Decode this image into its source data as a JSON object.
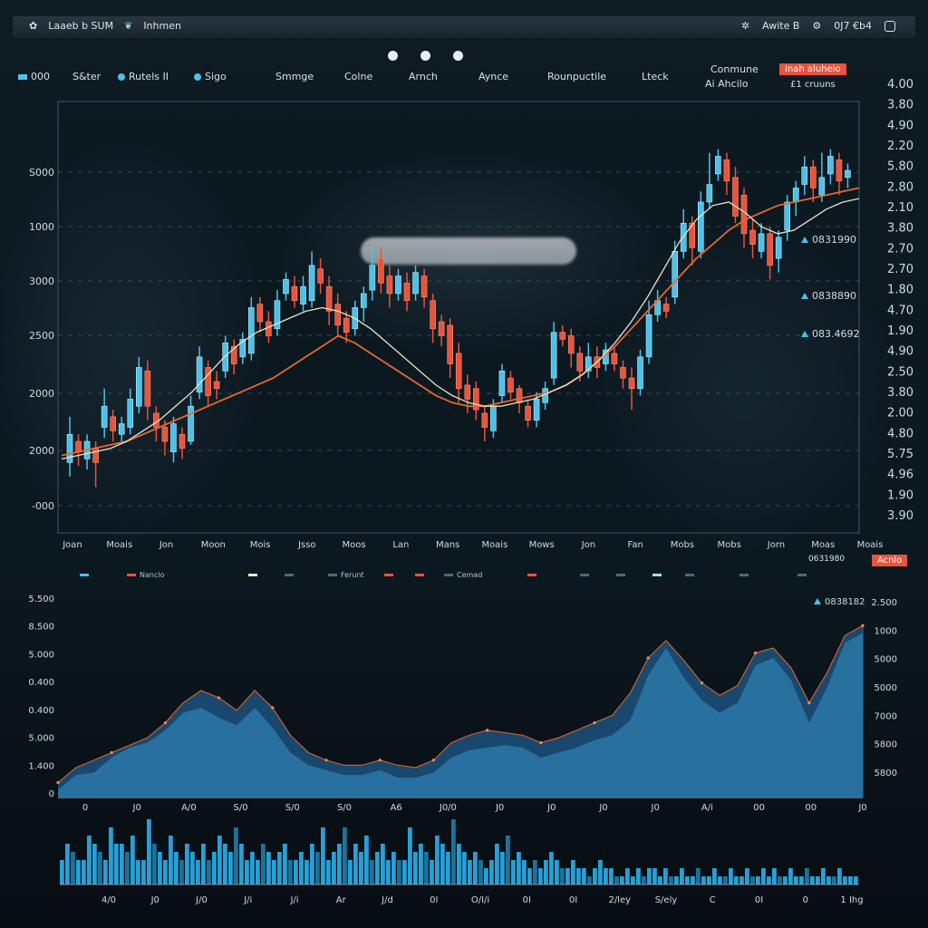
{
  "window": {
    "title_left": "Laaeb b SUM",
    "title_brand": "Inhmen",
    "status_text": "Awite B",
    "time_text": "0J7 €b4"
  },
  "menu": [
    {
      "label": "000"
    },
    {
      "label": "S&ter"
    },
    {
      "label": "Rutels II"
    },
    {
      "label": "Sigo"
    },
    {
      "label": "Smmge"
    },
    {
      "label": "Colne"
    },
    {
      "label": "Arnch"
    },
    {
      "label": "Aynce"
    },
    {
      "label": "Rounpuctile"
    },
    {
      "label": "Lteck"
    }
  ],
  "top_right": {
    "label1": "Conmune",
    "label2": "Ai Ahcilo",
    "badge": "Inah aluheio",
    "sub": "£1 cruuns"
  },
  "colors": {
    "up": "#4ac2ea",
    "down": "#e8543c",
    "ma_fast": "#e9e7c5",
    "ma_slow": "#e8672f",
    "area_top": "#2a78a8",
    "area_back": "#1b4f78",
    "volume": "#2aa8e0",
    "grid": "#3a5666"
  },
  "chart_data": [
    {
      "type": "candlestick",
      "title": "",
      "y_tick_labels": [
        "S000",
        "1000",
        "3000",
        "2500",
        "2000",
        "2000",
        "-000"
      ],
      "x_tick_labels": [
        "Joan",
        "Moais",
        "Jon",
        "Moon",
        "Mois",
        "Jsso",
        "Moos",
        "Lan",
        "Mans",
        "Moais",
        "Mows",
        "Jon",
        "Fan",
        "Mobs",
        "Mobs",
        "Jorn",
        "Moas",
        "Moais"
      ],
      "right_axis_labels": [
        "4.00",
        "3.80",
        "4.90",
        "2.20",
        "5.80",
        "2.80",
        "2.10",
        "3.80",
        "2.70",
        "2.70",
        "1.80",
        "4.70",
        "1.90",
        "4.90",
        "2.50",
        "3.80",
        "2.00",
        "4.80",
        "5.75",
        "4.96",
        "1.90",
        "3.90"
      ],
      "annotations": [
        {
          "text": "0831990",
          "color": "#4ac2ea"
        },
        {
          "text": "0838890",
          "color": "#4ac2ea"
        },
        {
          "text": "083.4692",
          "color": "#4ac2ea"
        }
      ],
      "ylim": [
        0,
        6000
      ],
      "candles": [
        [
          1000,
          1400,
          800,
          1650
        ],
        [
          1300,
          1150,
          950,
          1400
        ],
        [
          1050,
          1300,
          900,
          1400
        ],
        [
          1200,
          1000,
          650,
          1300
        ],
        [
          1500,
          1800,
          1350,
          2050
        ],
        [
          1650,
          1450,
          1300,
          1750
        ],
        [
          1400,
          1550,
          1300,
          1650
        ],
        [
          1500,
          1900,
          1400,
          2050
        ],
        [
          1800,
          2350,
          1700,
          2500
        ],
        [
          2300,
          1800,
          1600,
          2450
        ],
        [
          1700,
          1500,
          1300,
          1800
        ],
        [
          1500,
          1300,
          1100,
          1600
        ],
        [
          1150,
          1550,
          1000,
          1650
        ],
        [
          1400,
          1200,
          1050,
          1500
        ],
        [
          1300,
          1800,
          1250,
          1950
        ],
        [
          2000,
          2500,
          1900,
          2650
        ],
        [
          2350,
          1950,
          1800,
          2450
        ],
        [
          2150,
          2050,
          1900,
          2300
        ],
        [
          2300,
          2700,
          2200,
          2800
        ],
        [
          2650,
          2400,
          2250,
          2750
        ],
        [
          2500,
          2750,
          2400,
          2850
        ],
        [
          2550,
          3200,
          2450,
          3350
        ],
        [
          3250,
          3000,
          2850,
          3350
        ],
        [
          3000,
          2800,
          2700,
          3150
        ],
        [
          2900,
          3300,
          2800,
          3450
        ],
        [
          3400,
          3600,
          3300,
          3700
        ],
        [
          3500,
          3300,
          3200,
          3650
        ],
        [
          3250,
          3500,
          3150,
          3650
        ],
        [
          3300,
          3800,
          3200,
          4000
        ],
        [
          3750,
          3550,
          3400,
          3900
        ],
        [
          3500,
          3150,
          2950,
          3650
        ],
        [
          3250,
          2950,
          2800,
          3400
        ],
        [
          3050,
          2850,
          2700,
          3150
        ],
        [
          2900,
          3200,
          2800,
          3300
        ],
        [
          3200,
          3400,
          3000,
          3500
        ],
        [
          3450,
          3800,
          3300,
          4100
        ],
        [
          3900,
          3550,
          3400,
          4050
        ],
        [
          3650,
          3400,
          3200,
          3800
        ],
        [
          3400,
          3650,
          3300,
          3750
        ],
        [
          3550,
          3300,
          3150,
          3700
        ],
        [
          3400,
          3700,
          3300,
          3800
        ],
        [
          3650,
          3350,
          3200,
          3750
        ],
        [
          3300,
          2900,
          2700,
          3400
        ],
        [
          3000,
          2800,
          2650,
          3100
        ],
        [
          2950,
          2400,
          2200,
          3050
        ],
        [
          2550,
          2050,
          1850,
          2700
        ],
        [
          2100,
          1900,
          1700,
          2250
        ],
        [
          2050,
          1750,
          1600,
          2150
        ],
        [
          1700,
          1500,
          1300,
          1800
        ],
        [
          1450,
          1800,
          1350,
          1900
        ],
        [
          1950,
          2300,
          1850,
          2400
        ],
        [
          2200,
          2000,
          1900,
          2300
        ],
        [
          2050,
          1850,
          1700,
          2100
        ],
        [
          1800,
          1600,
          1500,
          1900
        ],
        [
          1600,
          1900,
          1500,
          2000
        ],
        [
          1850,
          2050,
          1750,
          2150
        ],
        [
          2200,
          2850,
          2100,
          3000
        ],
        [
          2850,
          2750,
          2650,
          2950
        ],
        [
          2800,
          2550,
          2350,
          2900
        ],
        [
          2550,
          2300,
          2150,
          2650
        ],
        [
          2300,
          2500,
          2200,
          2700
        ],
        [
          2500,
          2350,
          2200,
          2650
        ],
        [
          2400,
          2600,
          2300,
          2700
        ],
        [
          2550,
          2400,
          2300,
          2650
        ],
        [
          2350,
          2200,
          2050,
          2450
        ],
        [
          2200,
          2050,
          1750,
          2350
        ],
        [
          2050,
          2500,
          1950,
          2600
        ],
        [
          2500,
          3100,
          2400,
          3300
        ],
        [
          3100,
          3300,
          3000,
          3450
        ],
        [
          3250,
          3150,
          3050,
          3350
        ],
        [
          3350,
          4000,
          3250,
          4150
        ],
        [
          4000,
          4400,
          3900,
          4600
        ],
        [
          4400,
          4050,
          3800,
          4500
        ],
        [
          4000,
          4700,
          3900,
          4850
        ],
        [
          4700,
          4950,
          4600,
          5400
        ],
        [
          5100,
          5350,
          5000,
          5450
        ],
        [
          5300,
          5000,
          4800,
          5400
        ],
        [
          5050,
          4500,
          4400,
          5200
        ],
        [
          4800,
          4250,
          4050,
          4900
        ],
        [
          4300,
          4100,
          3900,
          4450
        ],
        [
          4000,
          4250,
          3900,
          4400
        ],
        [
          4250,
          3800,
          3600,
          4350
        ],
        [
          3900,
          4200,
          3700,
          4300
        ],
        [
          4300,
          4700,
          4150,
          4800
        ],
        [
          4700,
          4900,
          4500,
          5000
        ],
        [
          4950,
          5200,
          4800,
          5350
        ],
        [
          5200,
          4900,
          4700,
          5300
        ],
        [
          4800,
          5050,
          4700,
          5400
        ],
        [
          5100,
          5350,
          4950,
          5450
        ],
        [
          5300,
          5000,
          4800,
          5400
        ],
        [
          5050,
          5150,
          4900,
          5250
        ]
      ],
      "ma_fast_values": [
        1050,
        1100,
        1150,
        1200,
        1300,
        1450,
        1600,
        1800,
        2000,
        2250,
        2500,
        2700,
        2850,
        2950,
        3050,
        3150,
        3200,
        3150,
        3050,
        2900,
        2700,
        2500,
        2300,
        2100,
        1950,
        1850,
        1800,
        1800,
        1850,
        1900,
        2000,
        2100,
        2250,
        2450,
        2700,
        3000,
        3350,
        3750,
        4150,
        4450,
        4650,
        4700,
        4550,
        4350,
        4250,
        4300,
        4450,
        4600,
        4700,
        4750
      ],
      "ma_slow_values": [
        1100,
        1150,
        1200,
        1250,
        1300,
        1400,
        1500,
        1600,
        1700,
        1800,
        1900,
        2000,
        2100,
        2200,
        2350,
        2500,
        2650,
        2800,
        2700,
        2550,
        2400,
        2250,
        2100,
        1950,
        1850,
        1800,
        1800,
        1850,
        1900,
        1950,
        2000,
        2100,
        2250,
        2450,
        2650,
        2900,
        3150,
        3400,
        3650,
        3900,
        4100,
        4300,
        4450,
        4550,
        4650,
        4700,
        4750,
        4800,
        4850,
        4900
      ]
    },
    {
      "type": "area",
      "left_axis_labels": [
        "5.500",
        "8.500",
        "5.000",
        "0.400",
        "0.400",
        "5.000",
        "1.400",
        "0"
      ],
      "right_axis_labels": [
        "2.500",
        "1000",
        "5000",
        "5000",
        "7000",
        "5800",
        "5800"
      ],
      "x_tick_labels": [
        "0",
        "J0",
        "A/0",
        "S/0",
        "S/0",
        "S/0",
        "A6",
        "J0/0",
        "J0",
        "J0",
        "J0",
        "J0",
        "A/i",
        "00",
        "00",
        "J0"
      ],
      "annotation": "0838182",
      "ylim": [
        0,
        8
      ],
      "front_values": [
        0.3,
        0.9,
        1.0,
        1.6,
        2.0,
        2.2,
        2.7,
        3.4,
        3.6,
        3.2,
        2.9,
        3.6,
        2.8,
        1.8,
        1.3,
        1.1,
        0.9,
        0.9,
        1.1,
        0.8,
        0.8,
        1.0,
        1.6,
        1.9,
        2.0,
        2.1,
        2.0,
        1.6,
        1.8,
        2.0,
        2.3,
        2.5,
        3.1,
        4.9,
        6.0,
        4.8,
        3.9,
        3.4,
        3.8,
        5.3,
        5.6,
        4.7,
        3.0,
        4.4,
        6.2,
        6.6
      ],
      "back_values": [
        0.6,
        1.2,
        1.5,
        1.8,
        2.1,
        2.4,
        3.0,
        3.8,
        4.3,
        4.0,
        3.5,
        4.3,
        3.6,
        2.5,
        1.8,
        1.5,
        1.3,
        1.3,
        1.5,
        1.3,
        1.2,
        1.5,
        2.2,
        2.5,
        2.7,
        2.6,
        2.5,
        2.2,
        2.4,
        2.7,
        3.0,
        3.3,
        4.2,
        5.6,
        6.3,
        5.5,
        4.6,
        4.1,
        4.5,
        5.8,
        6.0,
        5.2,
        3.8,
        5.0,
        6.5,
        6.9
      ]
    },
    {
      "type": "bar",
      "x_tick_labels": [
        "4/0",
        "J0",
        "J/0",
        "J/i",
        "J/i",
        "Ar",
        "J/d",
        "0I",
        "O/I/i",
        "0I",
        "0I",
        "2/ley",
        "S/ely",
        "C",
        "0I",
        "0",
        "1 Ihg"
      ],
      "values": [
        3,
        5,
        4,
        3,
        3,
        6,
        5,
        4,
        3,
        7,
        5,
        5,
        4,
        6,
        3,
        3,
        8,
        5,
        4,
        3,
        6,
        4,
        3,
        5,
        4,
        3,
        5,
        3,
        4,
        6,
        5,
        4,
        7,
        5,
        3,
        4,
        3,
        5,
        4,
        3,
        4,
        5,
        3,
        3,
        4,
        3,
        5,
        4,
        7,
        3,
        4,
        5,
        7,
        3,
        5,
        4,
        6,
        3,
        4,
        5,
        3,
        4,
        3,
        3,
        7,
        4,
        5,
        4,
        3,
        6,
        5,
        4,
        8,
        5,
        4,
        3,
        4,
        3,
        2,
        3,
        5,
        4,
        6,
        3,
        4,
        3,
        2,
        3,
        2,
        3,
        4,
        3,
        2,
        2,
        3,
        2,
        2,
        1,
        2,
        3,
        2,
        2,
        1,
        1,
        2,
        1,
        2,
        1,
        2,
        2,
        1,
        2,
        1,
        1,
        2,
        1,
        1,
        2,
        1,
        1,
        2,
        1,
        1,
        2,
        1,
        1,
        2,
        1,
        1,
        2,
        1,
        2,
        1,
        1,
        2,
        1,
        1,
        2,
        1,
        1,
        2,
        1,
        1,
        2,
        1,
        1,
        1
      ]
    }
  ],
  "legend": {
    "items": [
      {
        "label": "",
        "color": "#4ac2ea"
      },
      {
        "label": "Nanclo",
        "color": "#e8543c"
      },
      {
        "label": "",
        "color": "#e9e7c5"
      },
      {
        "label": "",
        "color": "#4a6b7c"
      },
      {
        "label": "Ferunt",
        "color": "#4a6b7c"
      },
      {
        "label": "",
        "color": "#e8543c"
      },
      {
        "label": "",
        "color": "#e8543c"
      },
      {
        "label": "Cemad",
        "color": "#4a6b7c"
      },
      {
        "label": "",
        "color": "#e8543c"
      },
      {
        "label": "",
        "color": "#4a6b7c"
      },
      {
        "label": "",
        "color": "#4a6b7c"
      },
      {
        "label": "",
        "color": "#9fe3f5"
      },
      {
        "label": "",
        "color": "#4a6b7c"
      },
      {
        "label": "",
        "color": "#4a6b7c"
      },
      {
        "label": "",
        "color": "#4a6b7c"
      }
    ],
    "mid_annotation": "0631980",
    "mid_badge": "Acnlo"
  }
}
